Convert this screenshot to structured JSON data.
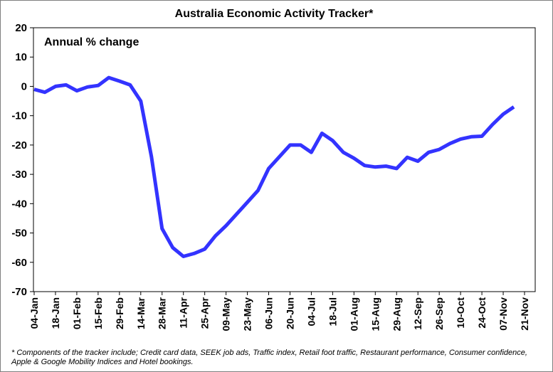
{
  "chart_data": {
    "type": "line",
    "title": "Australia Economic Activity Tracker*",
    "annotation": "Annual % change",
    "ylim": [
      -70,
      20
    ],
    "yticks": [
      20,
      10,
      0,
      -10,
      -20,
      -30,
      -40,
      -50,
      -60,
      -70
    ],
    "x_tick_labels": [
      "04-Jan",
      "18-Jan",
      "01-Feb",
      "15-Feb",
      "29-Feb",
      "14-Mar",
      "28-Mar",
      "11-Apr",
      "25-Apr",
      "09-May",
      "23-May",
      "06-Jun",
      "20-Jun",
      "04-Jul",
      "18-Jul",
      "01-Aug",
      "15-Aug",
      "29-Aug",
      "12-Sep",
      "26-Sep",
      "10-Oct",
      "24-Oct",
      "07-Nov",
      "21-Nov"
    ],
    "grid": false,
    "line_color": "#3333ff",
    "series": [
      {
        "x": [
          "04-Jan",
          "11-Jan",
          "18-Jan",
          "25-Jan",
          "01-Feb",
          "08-Feb",
          "15-Feb",
          "22-Feb",
          "29-Feb",
          "07-Mar",
          "14-Mar",
          "21-Mar",
          "28-Mar",
          "04-Apr",
          "11-Apr",
          "18-Apr",
          "25-Apr",
          "02-May",
          "09-May",
          "16-May",
          "23-May",
          "30-May",
          "06-Jun",
          "13-Jun",
          "20-Jun",
          "27-Jun",
          "04-Jul",
          "11-Jul",
          "18-Jul",
          "25-Jul",
          "01-Aug",
          "08-Aug",
          "15-Aug",
          "22-Aug",
          "29-Aug",
          "05-Sep",
          "12-Sep",
          "19-Sep",
          "26-Sep",
          "03-Oct",
          "10-Oct",
          "17-Oct",
          "24-Oct",
          "31-Oct",
          "07-Nov",
          "14-Nov"
        ],
        "values": [
          -1,
          -2,
          0,
          0.5,
          -1.5,
          -0.2,
          0.3,
          3,
          1.8,
          0.5,
          -5,
          -24,
          -48.5,
          -55,
          -58,
          -57,
          -55.5,
          -51,
          -47.5,
          -43.5,
          -39.5,
          -35.5,
          -28,
          -24,
          -20,
          -20,
          -22.5,
          -16,
          -18.5,
          -22.5,
          -24.5,
          -27,
          -27.5,
          -27.2,
          -28,
          -24.2,
          -25.5,
          -22.5,
          -21.5,
          -19.5,
          -18,
          -17.2,
          -17,
          -13,
          -9.5,
          -7
        ]
      }
    ]
  },
  "footnote": "* Components of the tracker include; Credit card data, SEEK job ads, Traffic index, Retail foot traffic, Restaurant performance, Consumer confidence, Apple & Google Mobility Indices and Hotel bookings."
}
